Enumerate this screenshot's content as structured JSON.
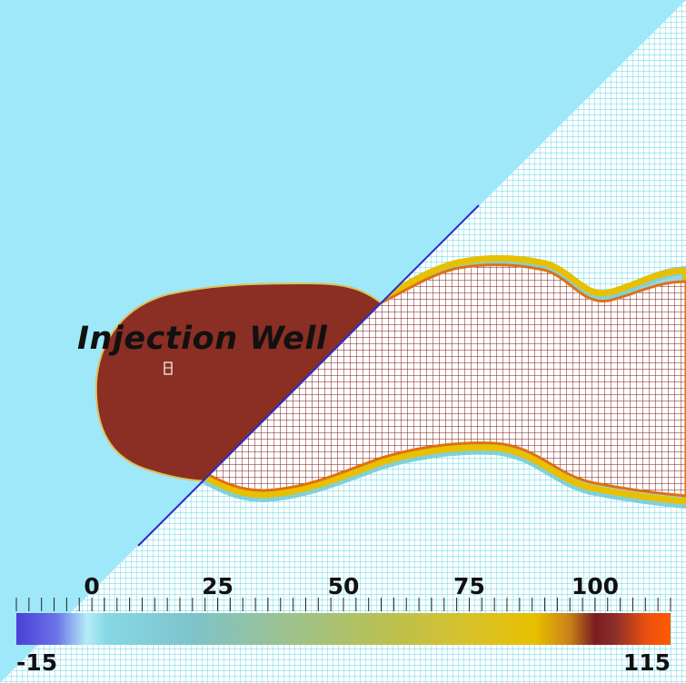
{
  "annotation": {
    "well_label": "Injection Well"
  },
  "colorbar": {
    "min_label": "-15",
    "max_label": "115",
    "min": -15,
    "max": 115,
    "major_ticks": [
      {
        "value": 0,
        "label": "0"
      },
      {
        "value": 25,
        "label": "25"
      },
      {
        "value": 50,
        "label": "50"
      },
      {
        "value": 75,
        "label": "75"
      },
      {
        "value": 100,
        "label": "100"
      }
    ],
    "minor_step": 2.5,
    "color_stops": [
      {
        "value": -15,
        "color": "#4a3fd6"
      },
      {
        "value": -7,
        "color": "#6b73e8"
      },
      {
        "value": -1,
        "color": "#b4ecf8"
      },
      {
        "value": 3,
        "color": "#86d8e4"
      },
      {
        "value": 20,
        "color": "#7ec3cb"
      },
      {
        "value": 40,
        "color": "#9ec28a"
      },
      {
        "value": 60,
        "color": "#bcc04e"
      },
      {
        "value": 75,
        "color": "#d8c22c"
      },
      {
        "value": 88,
        "color": "#e8c000"
      },
      {
        "value": 95,
        "color": "#c98018"
      },
      {
        "value": 100,
        "color": "#7a1c20"
      },
      {
        "value": 104,
        "color": "#8b2e2a"
      },
      {
        "value": 110,
        "color": "#e85010"
      },
      {
        "value": 115,
        "color": "#ff5a00"
      }
    ]
  },
  "colors": {
    "background": "#9fe8f9",
    "plume_fill": "#8b2e24",
    "mesh_line": "#5cd6e6",
    "plume_mesh_line": "#7a1a14",
    "cut_line": "#2a2acc",
    "front_yellow": "#e8c000",
    "front_orange": "#e07010"
  }
}
